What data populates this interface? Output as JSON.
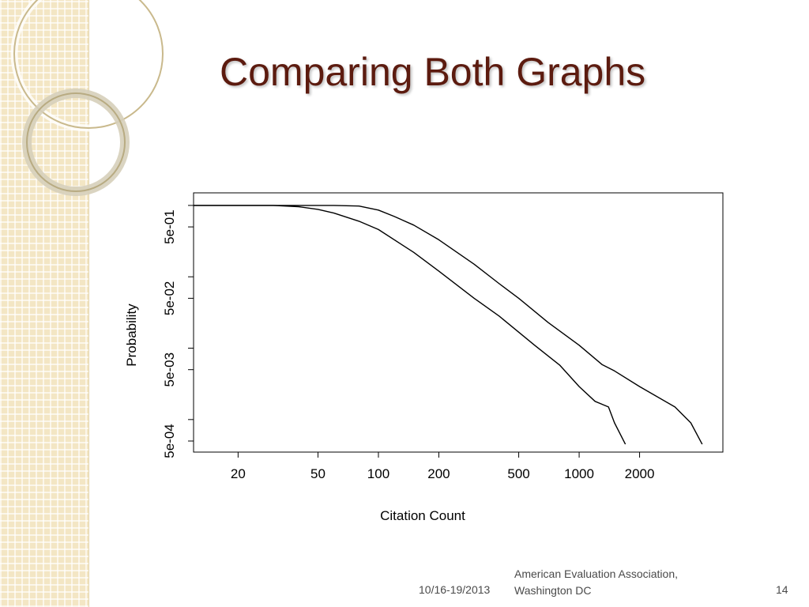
{
  "slide": {
    "title": "Comparing Both Graphs",
    "footer": {
      "date": "10/16-19/2013",
      "organization_line1": "American Evaluation Association,",
      "organization_line2": "Washington DC",
      "page_number": "14"
    },
    "colors": {
      "title": "#5c1b0f",
      "band": "#f3e6c4",
      "ring": "#c9b98c"
    }
  },
  "chart_data": {
    "type": "line",
    "xlabel": "Citation Count",
    "ylabel": "Probability",
    "x_scale": "log",
    "y_scale": "log",
    "xlim": [
      12,
      5200
    ],
    "ylim": [
      0.00035,
      1.5
    ],
    "x_ticks": [
      20,
      50,
      100,
      200,
      500,
      1000,
      2000
    ],
    "x_tick_labels": [
      "20",
      "50",
      "100",
      "200",
      "500",
      "1000",
      "2000"
    ],
    "y_ticks": [
      0.0005,
      0.001,
      0.005,
      0.01,
      0.05,
      0.1,
      0.5,
      1
    ],
    "y_tick_labels": [
      "5e-04",
      "",
      "5e-03",
      "",
      "5e-02",
      "",
      "5e-01",
      ""
    ],
    "grid": false,
    "series": [
      {
        "x": [
          12,
          30,
          40,
          50,
          60,
          80,
          100,
          150,
          200,
          300,
          400,
          600,
          800,
          1000,
          1200,
          1400,
          1500,
          1700
        ],
        "y": [
          1,
          1,
          0.96,
          0.88,
          0.78,
          0.6,
          0.46,
          0.22,
          0.12,
          0.05,
          0.028,
          0.011,
          0.0058,
          0.0029,
          0.0018,
          0.0015,
          0.0009,
          0.00045
        ]
      },
      {
        "x": [
          12,
          60,
          80,
          100,
          120,
          150,
          200,
          300,
          400,
          500,
          700,
          1000,
          1300,
          1500,
          2000,
          3000,
          3600,
          4100
        ],
        "y": [
          1,
          1,
          0.98,
          0.86,
          0.7,
          0.53,
          0.33,
          0.15,
          0.08,
          0.05,
          0.023,
          0.011,
          0.0059,
          0.0048,
          0.0029,
          0.0015,
          0.0009,
          0.00045
        ]
      }
    ]
  }
}
